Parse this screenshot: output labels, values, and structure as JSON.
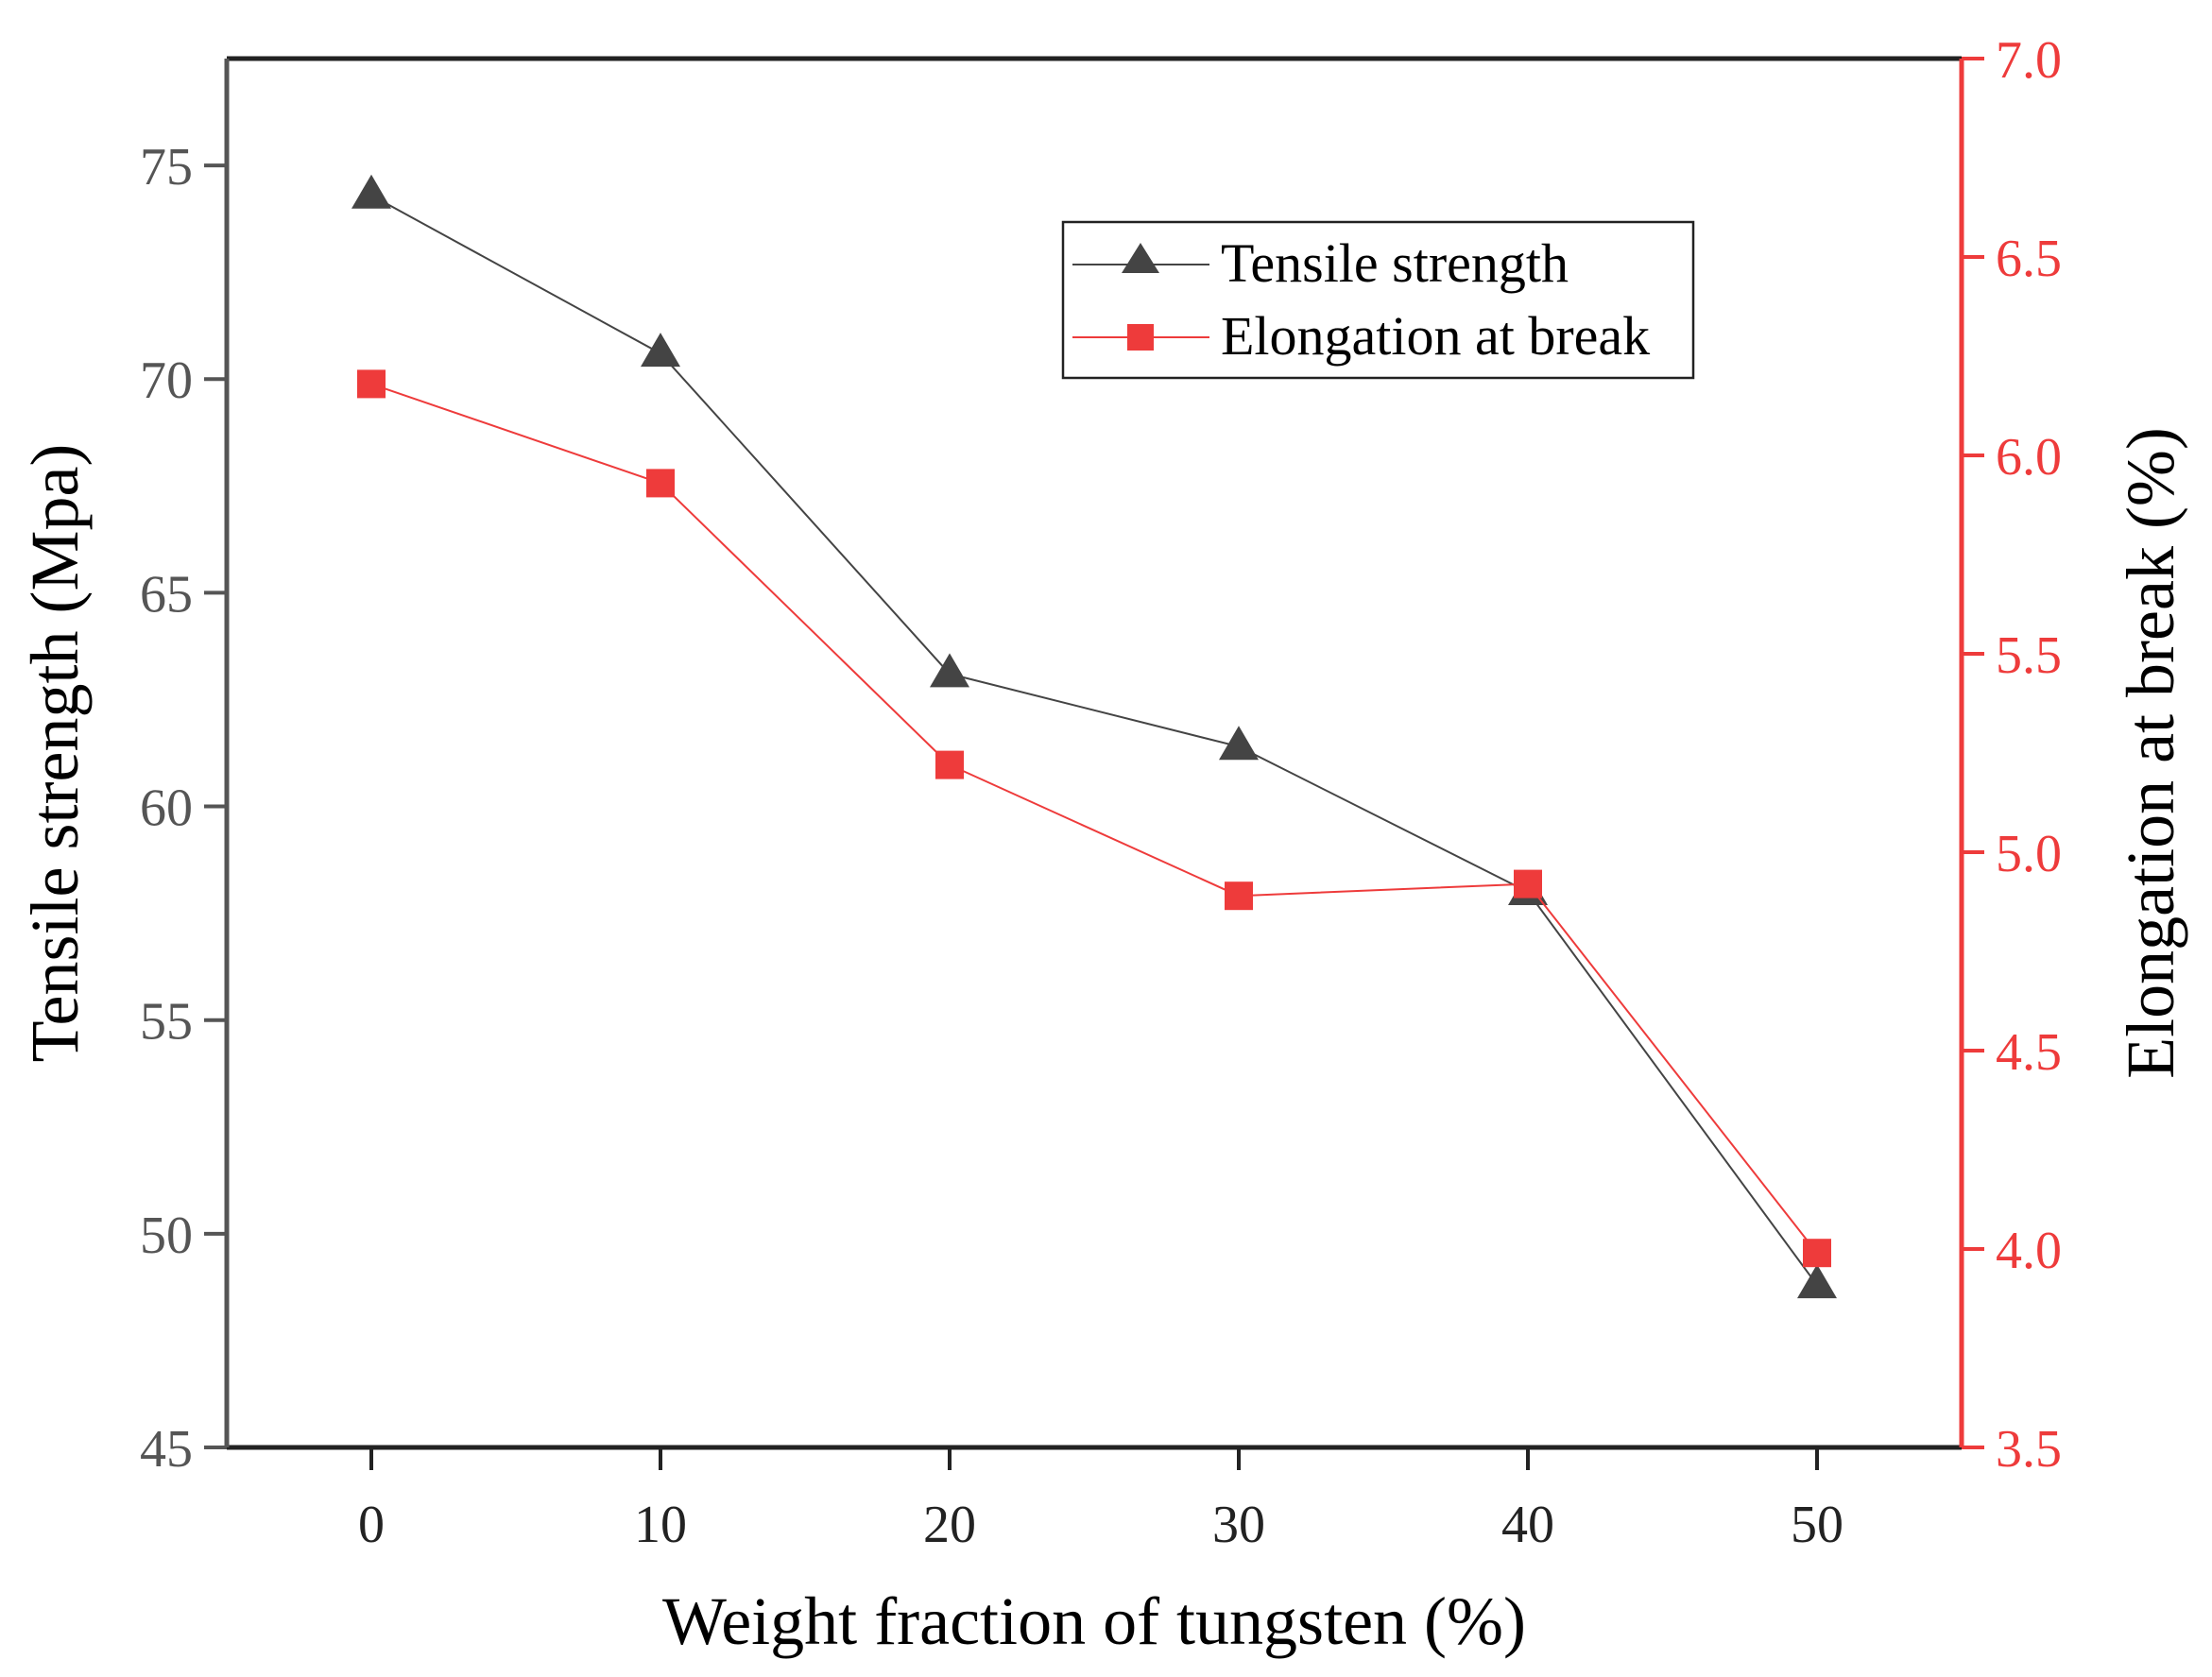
{
  "chart_data": {
    "type": "line",
    "x": [
      0,
      10,
      20,
      30,
      40,
      50
    ],
    "xlabel": "Weight fraction of tungsten (%)",
    "xlim": [
      -5,
      55
    ],
    "xticks": [
      "0",
      "10",
      "20",
      "30",
      "40",
      "50"
    ],
    "y_left": {
      "label": "Tensile strength (Mpa)",
      "lim": [
        45,
        77.5
      ],
      "ticks": [
        "45",
        "50",
        "55",
        "60",
        "65",
        "70",
        "75"
      ],
      "tick_values": [
        45,
        50,
        55,
        60,
        65,
        70,
        75
      ],
      "color": "#555555"
    },
    "y_right": {
      "label": "Elongation at break (%)",
      "lim": [
        3.5,
        7.0
      ],
      "ticks": [
        "3.5",
        "4.0",
        "4.5",
        "5.0",
        "5.5",
        "6.0",
        "6.5",
        "7.0"
      ],
      "tick_values": [
        3.5,
        4.0,
        4.5,
        5.0,
        5.5,
        6.0,
        6.5,
        7.0
      ],
      "color": "#ee3b3b"
    },
    "series": [
      {
        "name": "Tensile strength",
        "axis": "left",
        "marker": "triangle",
        "color": "#444444",
        "values": [
          74.3,
          70.6,
          63.1,
          61.4,
          58.0,
          48.8
        ]
      },
      {
        "name": "Elongation at break",
        "axis": "right",
        "marker": "square",
        "color": "#ee3b3b",
        "values": [
          6.18,
          5.93,
          5.22,
          4.89,
          4.92,
          3.99
        ]
      }
    ],
    "legend": {
      "placement": "top-right",
      "entries": [
        "Tensile strength",
        "Elongation at break"
      ]
    },
    "grid": false
  }
}
